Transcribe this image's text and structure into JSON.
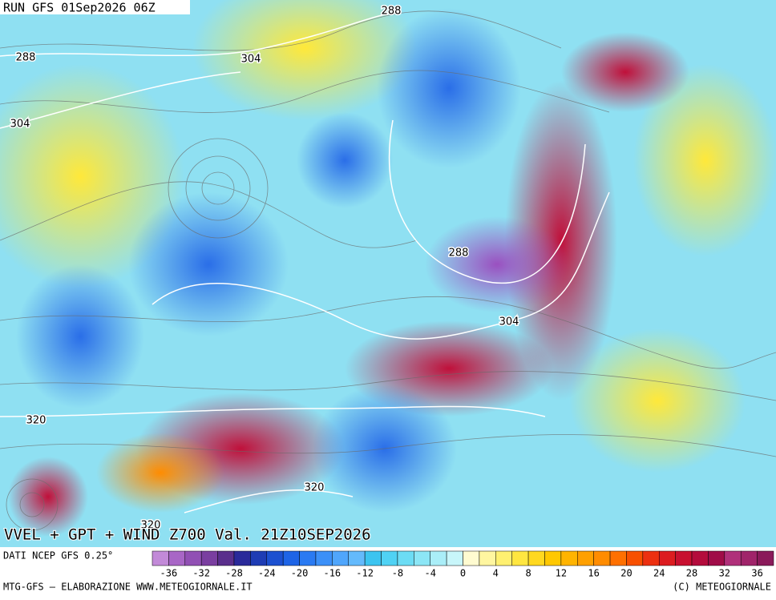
{
  "header": {
    "run": "RUN GFS 01Sep2026 06Z",
    "product": "VVEL + GPT + WIND Z700 Val. 21Z10SEP2026"
  },
  "contour_labels": [
    "288",
    "288",
    "304",
    "304",
    "288",
    "304",
    "320",
    "320",
    "320"
  ],
  "colorbar": {
    "source": "DATI NCEP GFS 0.25°",
    "ticks": [
      -36,
      -32,
      -28,
      -24,
      -20,
      -16,
      -12,
      -8,
      -4,
      0,
      4,
      8,
      12,
      16,
      20,
      24,
      28,
      32,
      36
    ],
    "colors": [
      "#c28ad8",
      "#a866c6",
      "#9150b4",
      "#7a3ea0",
      "#5a2f8c",
      "#2a2a9a",
      "#1e3cb4",
      "#1c50d0",
      "#1e64e6",
      "#2a7af2",
      "#3c90f8",
      "#50a6fc",
      "#64bafc",
      "#3cc4f0",
      "#50d2f4",
      "#6cdcf4",
      "#8ce6f6",
      "#aaeef8",
      "#c8f6fa",
      "#fffbd0",
      "#fff6a0",
      "#fff070",
      "#ffe640",
      "#ffd820",
      "#ffc800",
      "#ffb400",
      "#ffa000",
      "#ff8c00",
      "#ff7000",
      "#f85000",
      "#ec3010",
      "#dc1c20",
      "#c81030",
      "#b40c3c",
      "#a00c48",
      "#b0307a",
      "#a0246a",
      "#8a1a5a"
    ]
  },
  "footer": {
    "left": "MTG-GFS — ELABORAZIONE WWW.METEOGIORNALE.IT",
    "right": "(C) METEOGIORNALE"
  }
}
